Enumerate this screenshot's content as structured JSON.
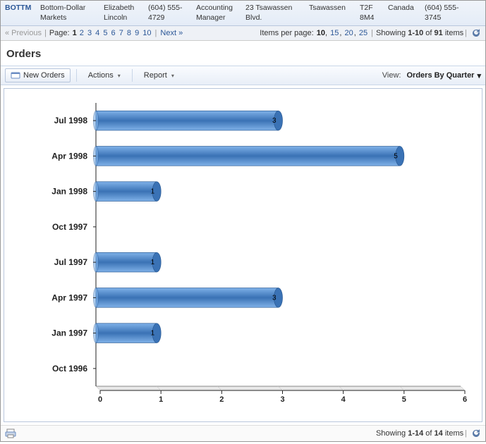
{
  "record": {
    "code": "BOTTM",
    "company": "Bottom-Dollar Markets",
    "contact": "Elizabeth Lincoln",
    "phone": "(604) 555-4729",
    "title": "Accounting Manager",
    "address": "23 Tsawassen Blvd.",
    "city": "Tsawassen",
    "postal": "T2F 8M4",
    "country": "Canada",
    "fax": "(604) 555-3745"
  },
  "pager": {
    "prev": "« Previous",
    "pageLabel": "Page:",
    "pages": [
      "1",
      "2",
      "3",
      "4",
      "5",
      "6",
      "7",
      "8",
      "9",
      "10"
    ],
    "current": "1",
    "next": "Next »",
    "itemsPerPageLabel": "Items per page:",
    "ipp": [
      "10",
      "15",
      "20",
      "25"
    ],
    "ippCurrent": "10",
    "showingPrefix": "Showing ",
    "showingRange": "1-10",
    "showingOf": " of ",
    "showingTotal": "91",
    "showingSuffix": " items"
  },
  "section": {
    "title": "Orders"
  },
  "toolbar": {
    "newOrders": "New Orders",
    "actions": "Actions",
    "report": "Report",
    "viewLabel": "View:",
    "viewValue": "Orders By Quarter"
  },
  "chart": {
    "type": "bar-horizontal-3d",
    "background": "#ffffff",
    "barColorLight": "#7fb1e8",
    "barColorDark": "#3a72b5",
    "barStroke": "#2a5a94",
    "axisColor": "#222222",
    "gridColor": "#dddddd",
    "labelFont": "bold 12px Arial",
    "valueFont": "10px Arial",
    "xmin": 0,
    "xmax": 6,
    "xstep": 1,
    "categories": [
      "Jul 1998",
      "Apr 1998",
      "Jan 1998",
      "Oct 1997",
      "Jul 1997",
      "Apr 1997",
      "Jan 1997",
      "Oct 1996"
    ],
    "values": [
      3,
      5,
      1,
      0,
      1,
      3,
      1,
      0
    ]
  },
  "footer": {
    "showingPrefix": "Showing ",
    "showingRange": "1-14",
    "showingOf": " of ",
    "showingTotal": "14",
    "showingSuffix": " items"
  }
}
